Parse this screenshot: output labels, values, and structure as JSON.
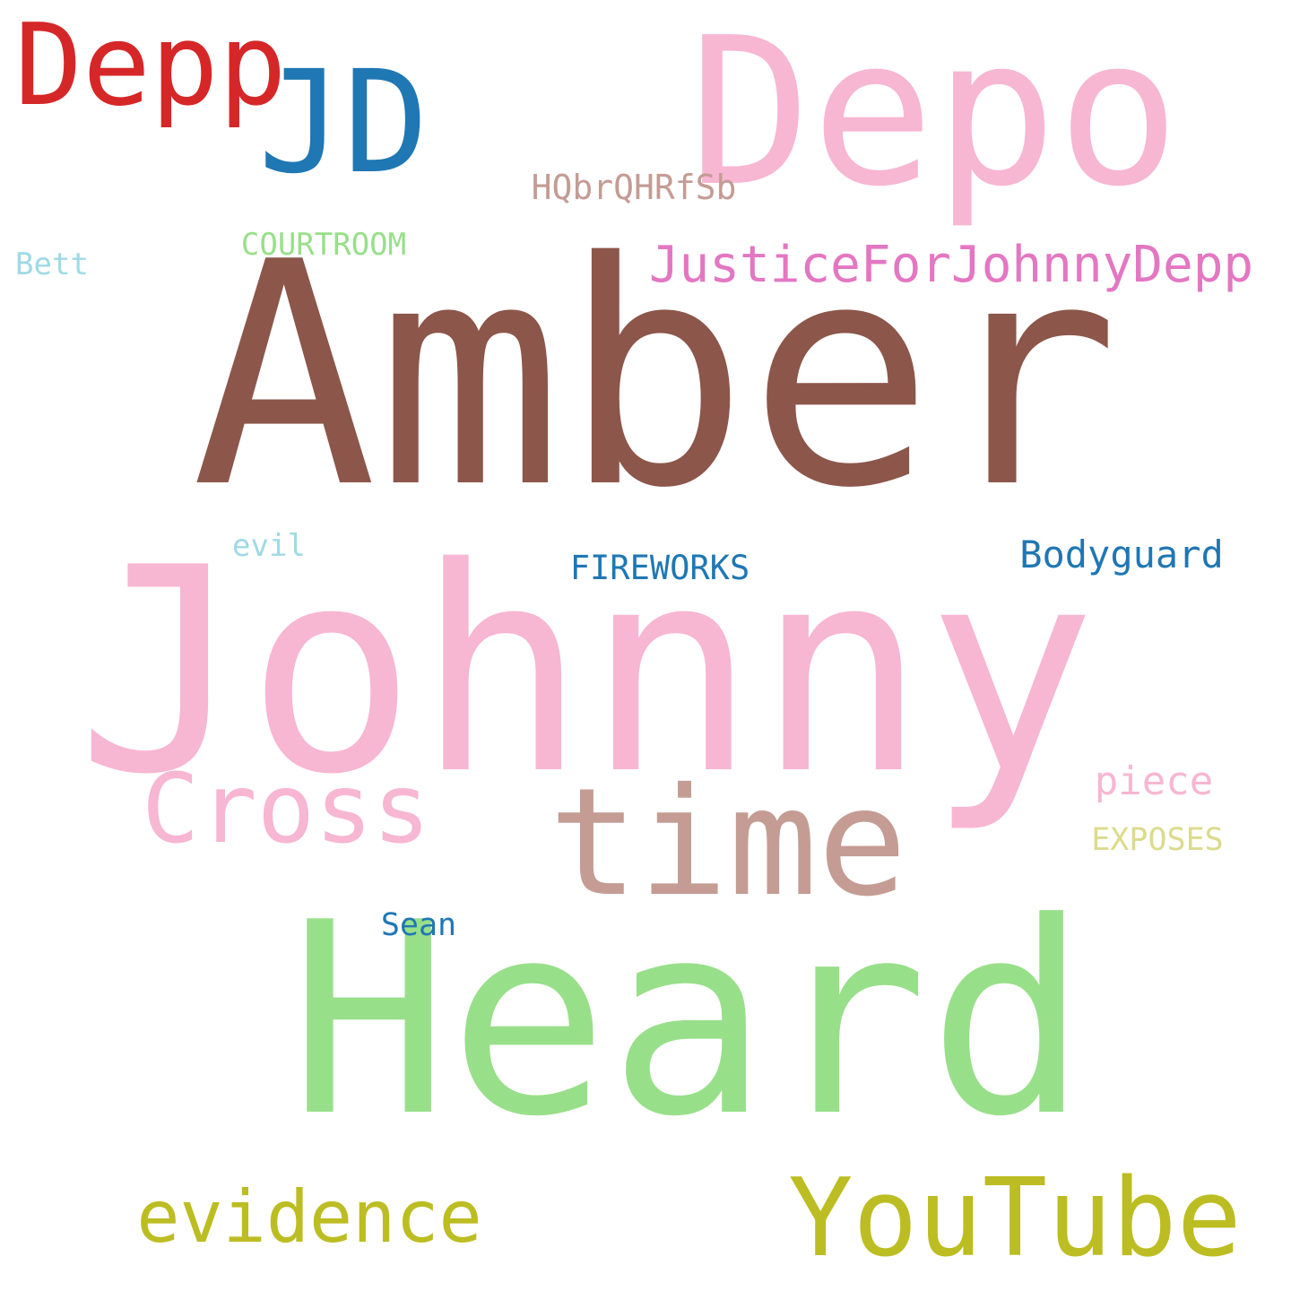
{
  "words": [
    {
      "text": "Amber",
      "color": "#8c564b"
    },
    {
      "text": "Johnny",
      "color": "#f7b6d2"
    },
    {
      "text": "Heard",
      "color": "#98df8a"
    },
    {
      "text": "Depo",
      "color": "#f7b6d2"
    },
    {
      "text": "JD",
      "color": "#1f77b4"
    },
    {
      "text": "Depp",
      "color": "#d62728"
    },
    {
      "text": "time",
      "color": "#c49c94"
    },
    {
      "text": "Cross",
      "color": "#f7b6d2"
    },
    {
      "text": "YouTube",
      "color": "#bcbd22"
    },
    {
      "text": "evidence",
      "color": "#bcbd22"
    },
    {
      "text": "JusticeForJohnnyDepp",
      "color": "#e377c2"
    },
    {
      "text": "HQbrQHRfSb",
      "color": "#c49c94"
    },
    {
      "text": "COURTROOM",
      "color": "#98df8a"
    },
    {
      "text": "Bett",
      "color": "#9edae5"
    },
    {
      "text": "evil",
      "color": "#9edae5"
    },
    {
      "text": "FIREWORKS",
      "color": "#1f77b4"
    },
    {
      "text": "Bodyguard",
      "color": "#1f77b4"
    },
    {
      "text": "piece",
      "color": "#f7b6d2"
    },
    {
      "text": "EXPOSES",
      "color": "#dbdb8d"
    },
    {
      "text": "Sean",
      "color": "#1f77b4"
    }
  ]
}
